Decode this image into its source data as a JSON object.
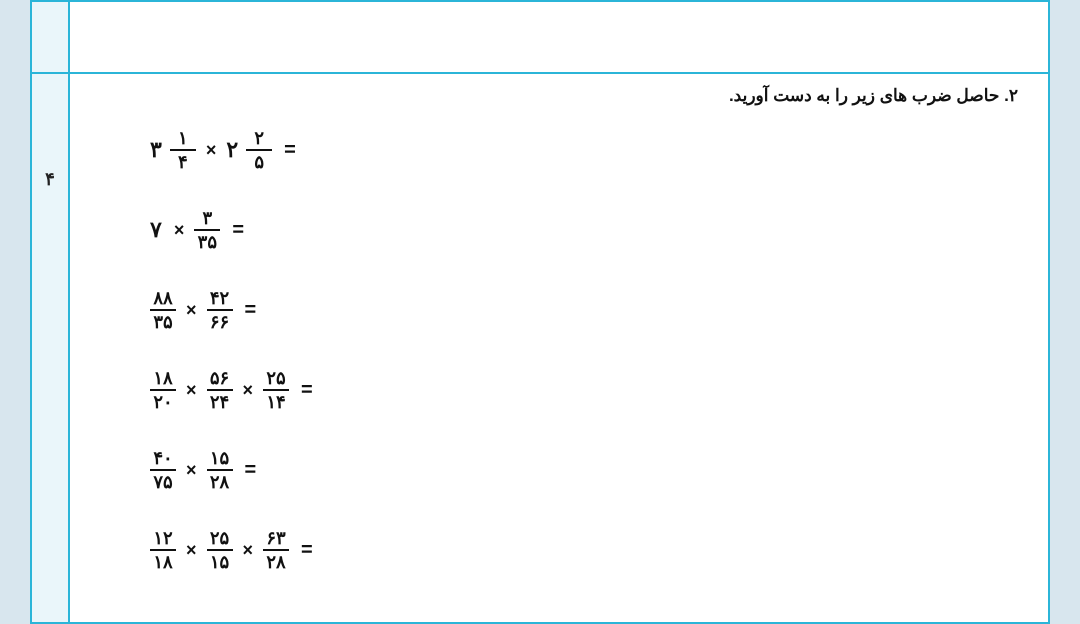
{
  "side": {
    "page_num": "۴"
  },
  "question": {
    "title": "۲. حاصل ضرب های زیر را به دست آورید."
  },
  "equations": [
    {
      "type": "mixed-times-mixed",
      "a_whole": "۳",
      "a_num": "۱",
      "a_den": "۴",
      "b_whole": "۲",
      "b_num": "۲",
      "b_den": "۵"
    },
    {
      "type": "int-times-frac",
      "a_int": "۷",
      "b_num": "۳",
      "b_den": "۳۵"
    },
    {
      "type": "frac-times-frac",
      "a_num": "۸۸",
      "a_den": "۳۵",
      "b_num": "۴۲",
      "b_den": "۶۶"
    },
    {
      "type": "frac3",
      "a_num": "۱۸",
      "a_den": "۲۰",
      "b_num": "۵۶",
      "b_den": "۲۴",
      "c_num": "۲۵",
      "c_den": "۱۴"
    },
    {
      "type": "frac-times-frac",
      "a_num": "۴۰",
      "a_den": "۷۵",
      "b_num": "۱۵",
      "b_den": "۲۸"
    },
    {
      "type": "frac3",
      "a_num": "۱۲",
      "a_den": "۱۸",
      "b_num": "۲۵",
      "b_den": "۱۵",
      "c_num": "۶۳",
      "c_den": "۲۸"
    }
  ]
}
